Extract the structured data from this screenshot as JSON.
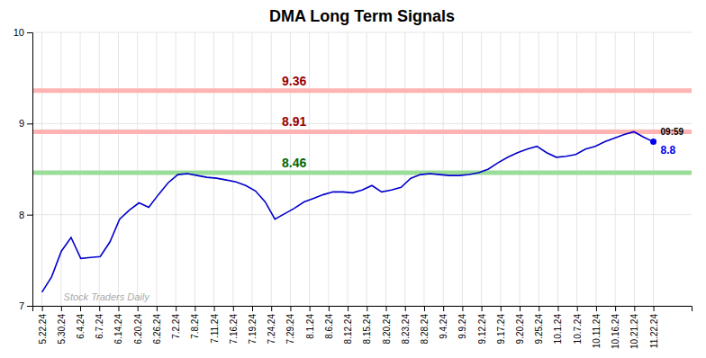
{
  "chart_data": {
    "type": "line",
    "title": "DMA Long Term Signals",
    "watermark": {
      "text": "Stock Traders Daily",
      "color": "#aaaaaa"
    },
    "xlim": [
      -0.5,
      34
    ],
    "xticks": [
      {
        "value": 0,
        "label": "5.22.24"
      },
      {
        "value": 1,
        "label": "5.30.24"
      },
      {
        "value": 2,
        "label": "6.4.24"
      },
      {
        "value": 3,
        "label": "6.7.24"
      },
      {
        "value": 4,
        "label": "6.14.24"
      },
      {
        "value": 5,
        "label": "6.20.24"
      },
      {
        "value": 6,
        "label": "6.26.24"
      },
      {
        "value": 7,
        "label": "7.2.24"
      },
      {
        "value": 8,
        "label": "7.8.24"
      },
      {
        "value": 9,
        "label": "7.11.24"
      },
      {
        "value": 10,
        "label": "7.16.24"
      },
      {
        "value": 11,
        "label": "7.19.24"
      },
      {
        "value": 12,
        "label": "7.24.24"
      },
      {
        "value": 13,
        "label": "7.29.24"
      },
      {
        "value": 14,
        "label": "8.1.24"
      },
      {
        "value": 15,
        "label": "8.6.24"
      },
      {
        "value": 16,
        "label": "8.12.24"
      },
      {
        "value": 17,
        "label": "8.15.24"
      },
      {
        "value": 18,
        "label": "8.20.24"
      },
      {
        "value": 19,
        "label": "8.23.24"
      },
      {
        "value": 20,
        "label": "8.28.24"
      },
      {
        "value": 21,
        "label": "9.4.24"
      },
      {
        "value": 22,
        "label": "9.9.24"
      },
      {
        "value": 23,
        "label": "9.12.24"
      },
      {
        "value": 24,
        "label": "9.17.24"
      },
      {
        "value": 25,
        "label": "9.20.24"
      },
      {
        "value": 26,
        "label": "9.25.24"
      },
      {
        "value": 27,
        "label": "10.1.24"
      },
      {
        "value": 28,
        "label": "10.7.24"
      },
      {
        "value": 29,
        "label": "10.11.24"
      },
      {
        "value": 30,
        "label": "10.16.24"
      },
      {
        "value": 31,
        "label": "10.21.24"
      },
      {
        "value": 32,
        "label": "11.22.24"
      }
    ],
    "ylim": [
      7.0,
      10.0
    ],
    "yticks": [
      7,
      8,
      9,
      10
    ],
    "grid": true,
    "series": [
      {
        "color": "#0000cc",
        "values": [
          7.15,
          7.32,
          7.6,
          7.75,
          7.52,
          7.53,
          7.54,
          7.7,
          7.95,
          8.05,
          8.13,
          8.08,
          8.22,
          8.35,
          8.44,
          8.45,
          8.43,
          8.41,
          8.4,
          8.38,
          8.36,
          8.32,
          8.26,
          8.14,
          7.95,
          8.01,
          8.07,
          8.14,
          8.18,
          8.22,
          8.25,
          8.25,
          8.24,
          8.27,
          8.32,
          8.25,
          8.27,
          8.3,
          8.4,
          8.44,
          8.45,
          8.44,
          8.43,
          8.43,
          8.44,
          8.46,
          8.5,
          8.57,
          8.63,
          8.68,
          8.72,
          8.75,
          8.68,
          8.63,
          8.64,
          8.66,
          8.72,
          8.75,
          8.8,
          8.84,
          8.88,
          8.91,
          8.85,
          8.8
        ]
      }
    ],
    "last_point": {
      "time_label": "09:59",
      "value_label": "8.8",
      "color": "#0000ee"
    },
    "hlines": [
      {
        "value": 9.36,
        "label": "9.36",
        "color": "#ffb3b3",
        "label_color": "#990000"
      },
      {
        "value": 8.91,
        "label": "8.91",
        "color": "#ffb3b3",
        "label_color": "#990000"
      },
      {
        "value": 8.46,
        "label": "8.46",
        "color": "#99dd99",
        "label_color": "#006600"
      }
    ]
  }
}
